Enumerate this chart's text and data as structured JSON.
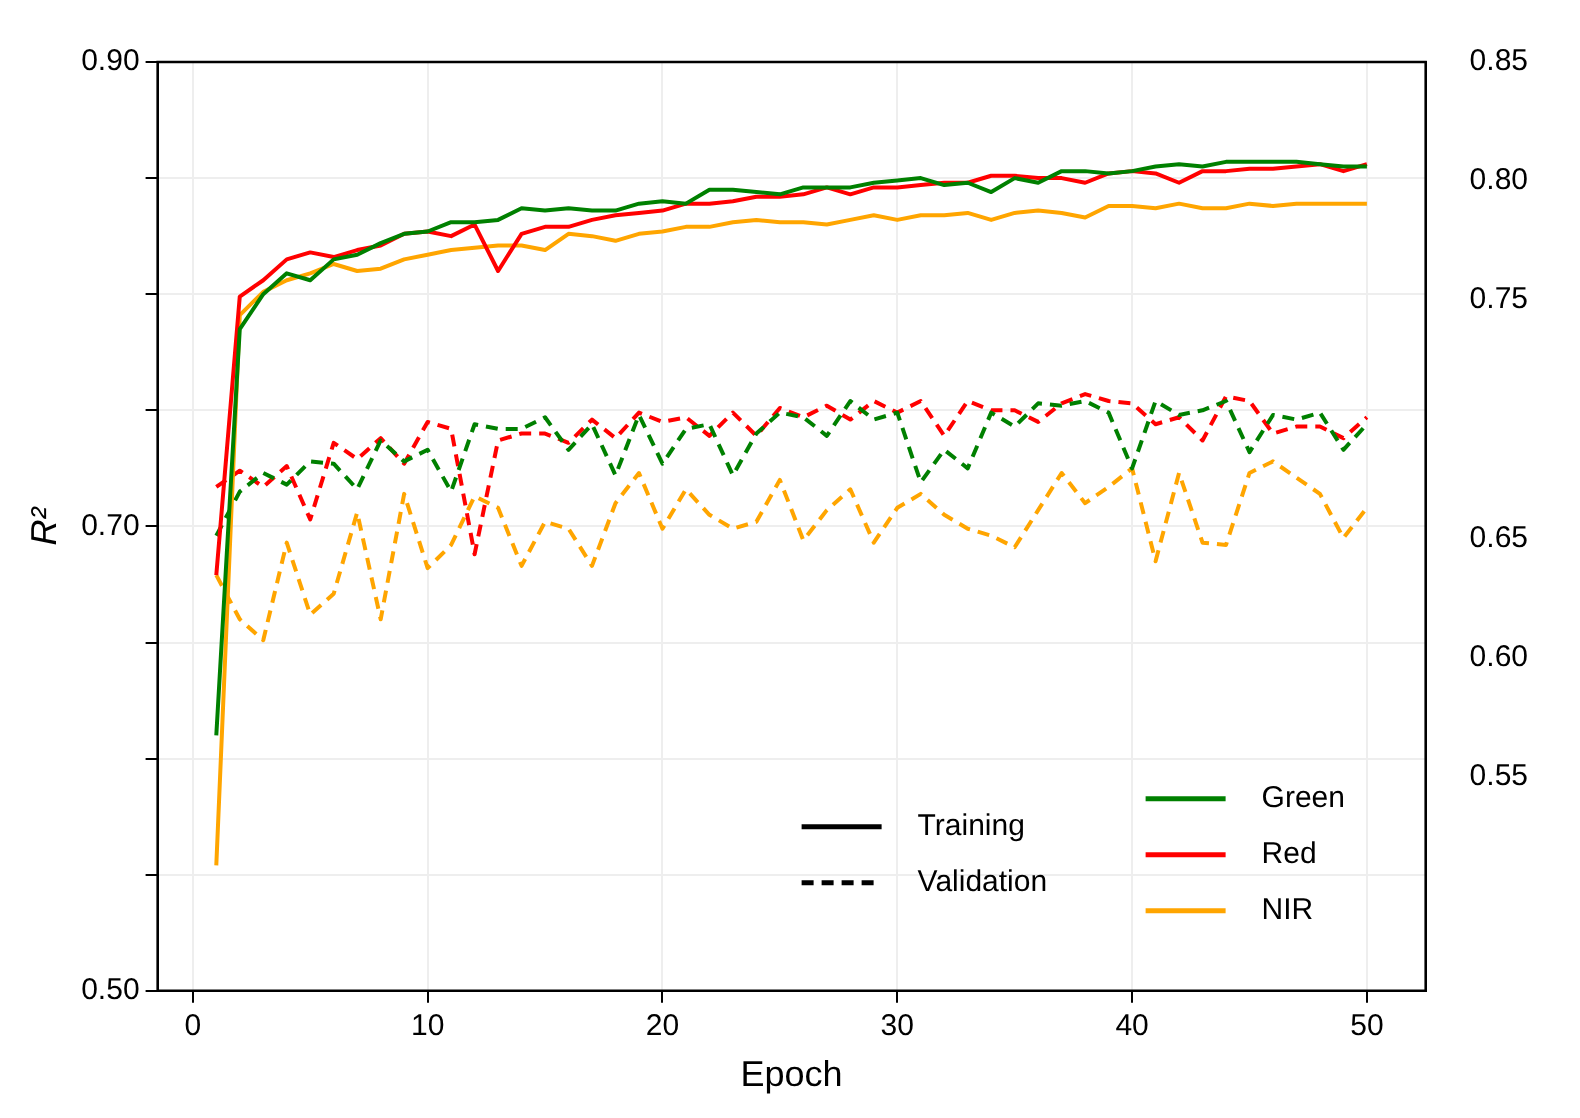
{
  "chart_data": {
    "type": "line",
    "xlabel": "Epoch",
    "ylabel": "R²",
    "x": [
      1,
      2,
      3,
      4,
      5,
      6,
      7,
      8,
      9,
      10,
      11,
      12,
      13,
      14,
      15,
      16,
      17,
      18,
      19,
      20,
      21,
      22,
      23,
      24,
      25,
      26,
      27,
      28,
      29,
      30,
      31,
      32,
      33,
      34,
      35,
      36,
      37,
      38,
      39,
      40,
      41,
      42,
      43,
      44,
      45,
      46,
      47,
      48,
      49,
      50
    ],
    "xlim": [
      -1.5,
      52.5
    ],
    "xticks": [
      0,
      10,
      20,
      30,
      40,
      50
    ],
    "ylim": [
      0.5,
      0.9
    ],
    "yticks": [
      {
        "value": 0.5,
        "label": "0.50"
      },
      {
        "value": 0.55,
        "label": null
      },
      {
        "value": 0.6,
        "label": null
      },
      {
        "value": 0.65,
        "label": null
      },
      {
        "value": 0.7,
        "label": "0.70"
      },
      {
        "value": 0.75,
        "label": null
      },
      {
        "value": 0.8,
        "label": null
      },
      {
        "value": 0.85,
        "label": null
      },
      {
        "value": 0.9,
        "label": "0.90"
      }
    ],
    "y2lim": [
      0.46,
      0.85
    ],
    "y2ticks": [
      0.85,
      {
        "value": 0.8,
        "label": "0.80"
      },
      0.75,
      0.65,
      {
        "value": 0.6,
        "label": "0.60"
      },
      0.55
    ],
    "grid": true,
    "legend": "bottom right",
    "annotations": [
      "Training",
      "Validation"
    ],
    "series": [
      {
        "name": "Green",
        "color": "#008000",
        "line_style": "solid",
        "values": [
          0.61,
          0.785,
          0.8,
          0.809,
          0.806,
          0.815,
          0.817,
          0.822,
          0.826,
          0.827,
          0.831,
          0.831,
          0.832,
          0.837,
          0.836,
          0.837,
          0.836,
          0.836,
          0.839,
          0.84,
          0.839,
          0.845,
          0.845,
          0.844,
          0.843,
          0.846,
          0.846,
          0.846,
          0.848,
          0.849,
          0.85,
          0.847,
          0.848,
          0.844,
          0.85,
          0.848,
          0.853,
          0.853,
          0.852,
          0.853,
          0.855,
          0.856,
          0.855,
          0.857,
          0.857,
          0.857,
          0.857,
          0.856,
          0.855,
          0.855
        ]
      },
      {
        "name": "Red",
        "color": "#ff0000",
        "line_style": "solid",
        "values": [
          0.679,
          0.799,
          0.806,
          0.815,
          0.818,
          0.816,
          0.819,
          0.821,
          0.826,
          0.827,
          0.825,
          0.83,
          0.81,
          0.826,
          0.829,
          0.829,
          0.832,
          0.834,
          0.835,
          0.836,
          0.839,
          0.839,
          0.84,
          0.842,
          0.842,
          0.843,
          0.846,
          0.843,
          0.846,
          0.846,
          0.847,
          0.848,
          0.848,
          0.851,
          0.851,
          0.85,
          0.85,
          0.848,
          0.852,
          0.853,
          0.852,
          0.848,
          0.853,
          0.853,
          0.854,
          0.854,
          0.855,
          0.856,
          0.853,
          0.856
        ]
      },
      {
        "name": "NIR",
        "color": "#ffa500",
        "line_style": "solid",
        "values": [
          0.554,
          0.791,
          0.801,
          0.806,
          0.809,
          0.813,
          0.81,
          0.811,
          0.815,
          0.817,
          0.819,
          0.82,
          0.821,
          0.821,
          0.819,
          0.826,
          0.825,
          0.823,
          0.826,
          0.827,
          0.829,
          0.829,
          0.831,
          0.832,
          0.831,
          0.831,
          0.83,
          0.832,
          0.834,
          0.832,
          0.834,
          0.834,
          0.835,
          0.832,
          0.835,
          0.836,
          0.835,
          0.833,
          0.838,
          0.838,
          0.837,
          0.839,
          0.837,
          0.837,
          0.839,
          0.838,
          0.839,
          0.839,
          0.839,
          0.839
        ]
      },
      {
        "color": "#008000",
        "line_style": "dashed",
        "values": [
          0.696,
          0.715,
          0.723,
          0.718,
          0.728,
          0.727,
          0.716,
          0.737,
          0.728,
          0.733,
          0.715,
          0.744,
          0.742,
          0.742,
          0.747,
          0.733,
          0.744,
          0.722,
          0.748,
          0.727,
          0.742,
          0.744,
          0.722,
          0.74,
          0.749,
          0.747,
          0.739,
          0.754,
          0.746,
          0.749,
          0.719,
          0.733,
          0.725,
          0.749,
          0.743,
          0.753,
          0.752,
          0.754,
          0.749,
          0.725,
          0.754,
          0.748,
          0.75,
          0.754,
          0.732,
          0.748,
          0.746,
          0.749,
          0.733,
          0.744
        ]
      },
      {
        "color": "#ff0000",
        "line_style": "dashed",
        "values": [
          0.717,
          0.724,
          0.717,
          0.726,
          0.703,
          0.736,
          0.729,
          0.738,
          0.727,
          0.745,
          0.742,
          0.688,
          0.737,
          0.74,
          0.74,
          0.736,
          0.746,
          0.738,
          0.749,
          0.745,
          0.747,
          0.739,
          0.749,
          0.739,
          0.751,
          0.747,
          0.752,
          0.746,
          0.754,
          0.749,
          0.754,
          0.739,
          0.754,
          0.75,
          0.75,
          0.745,
          0.753,
          0.757,
          0.754,
          0.753,
          0.744,
          0.747,
          0.737,
          0.756,
          0.754,
          0.74,
          0.743,
          0.743,
          0.738,
          0.747
        ]
      },
      {
        "color": "#ffa500",
        "line_style": "dashed",
        "values": [
          0.679,
          0.66,
          0.651,
          0.693,
          0.662,
          0.671,
          0.706,
          0.66,
          0.714,
          0.682,
          0.692,
          0.713,
          0.708,
          0.683,
          0.702,
          0.699,
          0.683,
          0.71,
          0.723,
          0.699,
          0.716,
          0.705,
          0.699,
          0.702,
          0.72,
          0.694,
          0.707,
          0.716,
          0.693,
          0.708,
          0.714,
          0.705,
          0.699,
          0.696,
          0.691,
          0.707,
          0.723,
          0.71,
          0.717,
          0.725,
          0.685,
          0.723,
          0.693,
          0.692,
          0.723,
          0.728,
          0.721,
          0.714,
          0.695,
          0.708
        ]
      }
    ]
  }
}
